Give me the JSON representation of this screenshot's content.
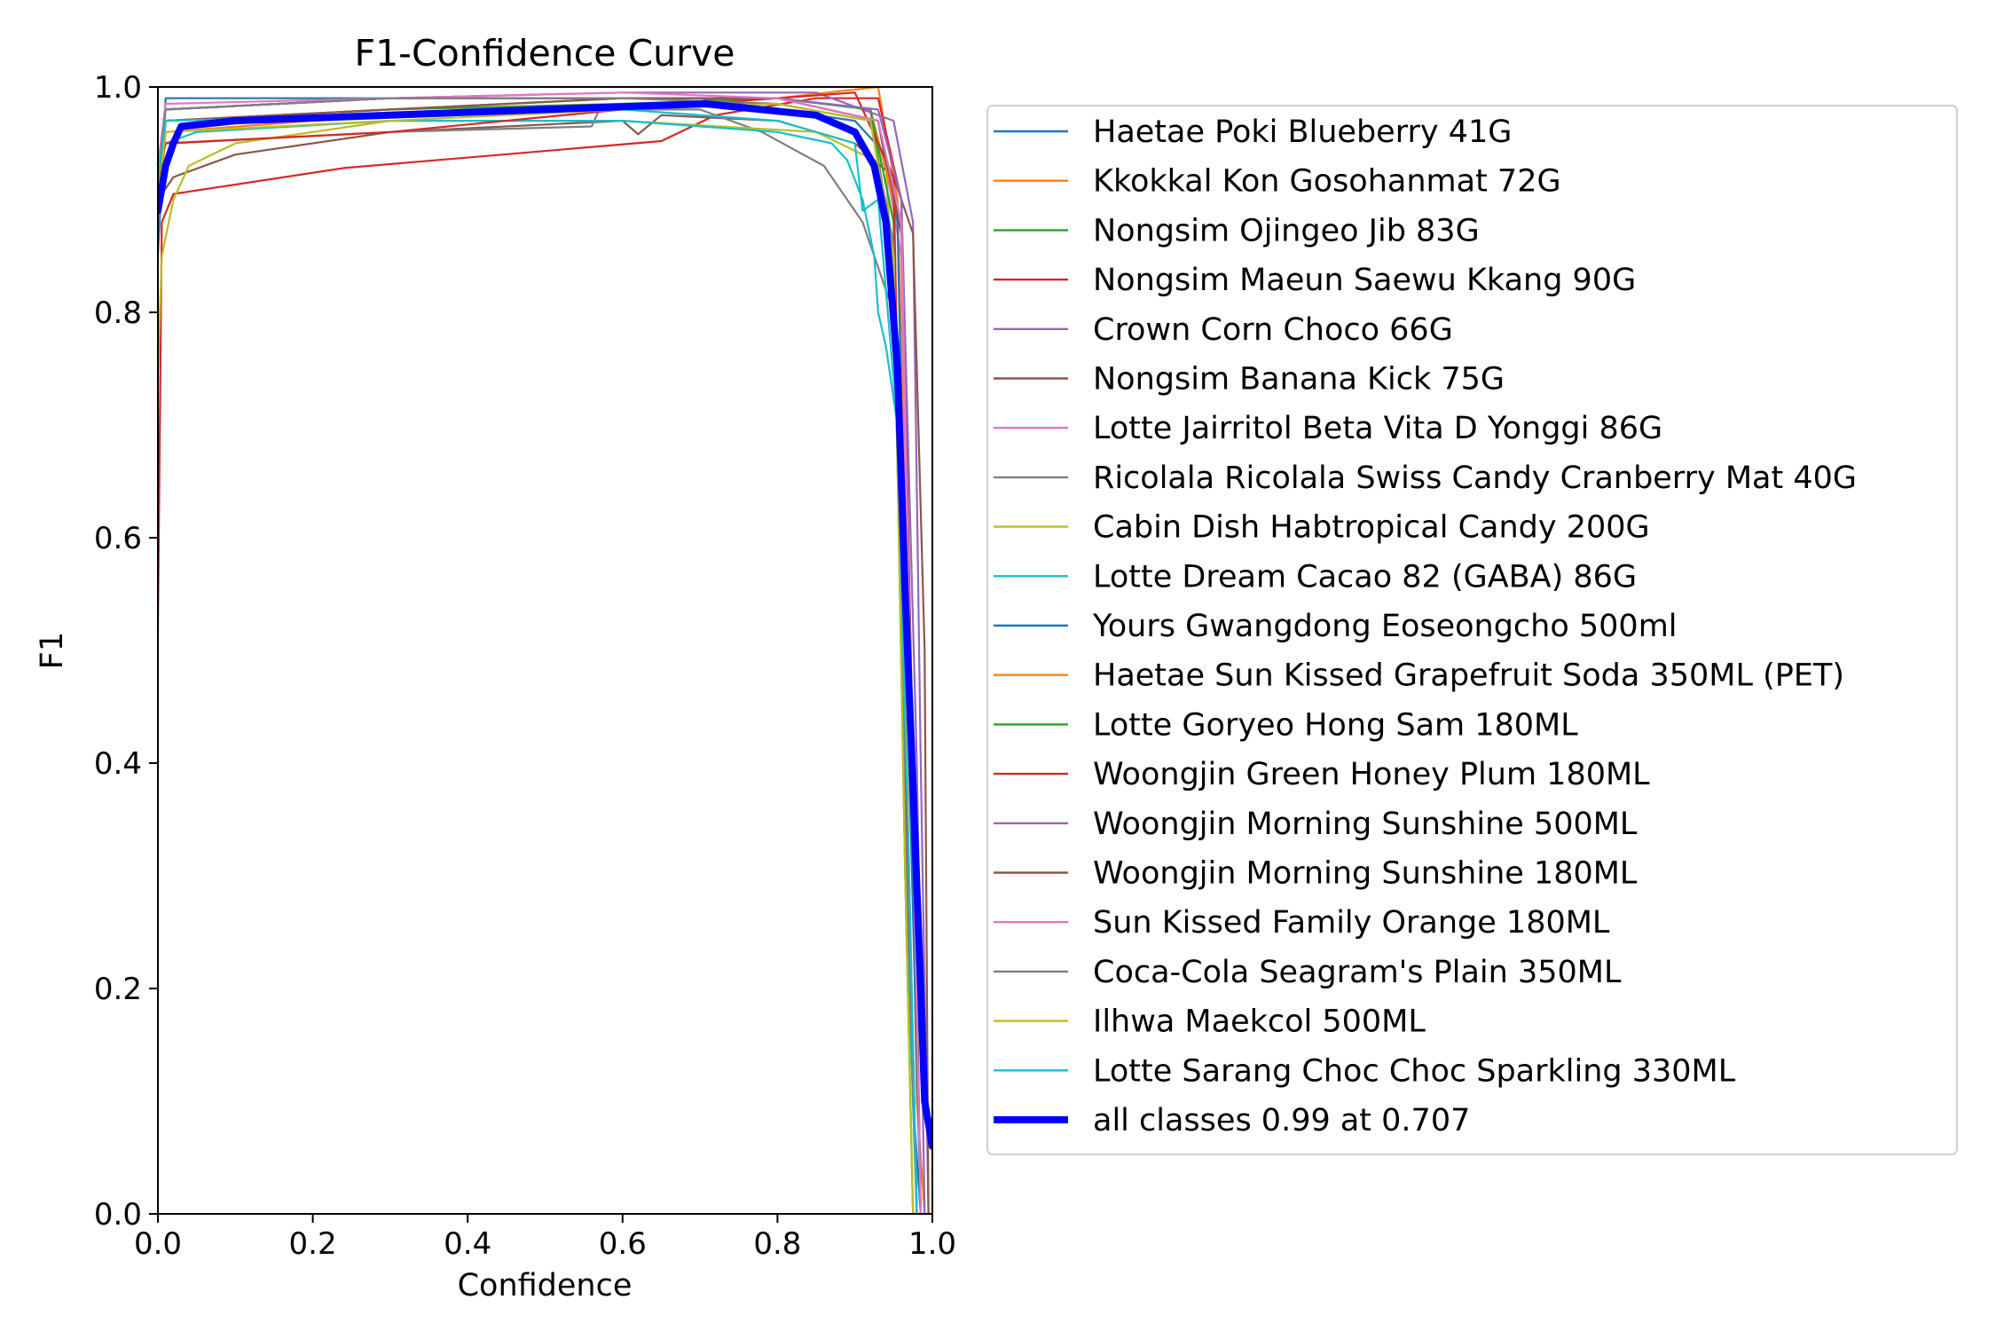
{
  "chart_data": {
    "type": "line",
    "title": "F1-Confidence Curve",
    "xlabel": "Confidence",
    "ylabel": "F1",
    "xlim": [
      0,
      1
    ],
    "ylim": [
      0,
      1
    ],
    "x_ticks": [
      "0.0",
      "0.2",
      "0.4",
      "0.6",
      "0.8",
      "1.0"
    ],
    "y_ticks": [
      "0.0",
      "0.2",
      "0.4",
      "0.6",
      "0.8",
      "1.0"
    ],
    "grid": false,
    "legend_position": "outside-right",
    "series": [
      {
        "name": "Haetae Poki Blueberry 41G",
        "color": "#1f77b4",
        "x": [
          0,
          0.01,
          0.1,
          0.3,
          0.5,
          0.7,
          0.9,
          0.94,
          0.96,
          0.975,
          0.985
        ],
        "y": [
          0.85,
          0.99,
          0.99,
          0.99,
          0.99,
          0.99,
          0.97,
          0.94,
          0.6,
          0.1,
          0.0
        ]
      },
      {
        "name": "Kkokkal Kon Gosohanmat 72G",
        "color": "#ff7f0e",
        "x": [
          0,
          0.01,
          0.2,
          0.5,
          0.8,
          0.93,
          0.955,
          0.97,
          0.98,
          0.99
        ],
        "y": [
          0.88,
          0.96,
          0.97,
          0.98,
          0.99,
          1.0,
          0.9,
          0.5,
          0.1,
          0.0
        ]
      },
      {
        "name": "Nongsim Ojingeo Jib 83G",
        "color": "#2ca02c",
        "x": [
          0,
          0.01,
          0.3,
          0.6,
          0.8,
          0.92,
          0.95,
          0.965,
          0.975
        ],
        "y": [
          0.9,
          0.97,
          0.98,
          0.99,
          0.99,
          0.98,
          0.85,
          0.3,
          0.0
        ]
      },
      {
        "name": "Nongsim Maeun Saewu Kkang 90G",
        "color": "#d62728",
        "x": [
          0,
          0.005,
          0.02,
          0.24,
          0.65,
          0.72,
          0.85,
          0.93,
          0.96,
          0.975,
          0.985
        ],
        "y": [
          0.52,
          0.88,
          0.905,
          0.928,
          0.952,
          0.975,
          0.99,
          0.99,
          0.9,
          0.4,
          0.0
        ]
      },
      {
        "name": "Crown Corn Choco 66G",
        "color": "#9467bd",
        "x": [
          0,
          0.01,
          0.3,
          0.6,
          0.85,
          0.95,
          0.975,
          0.985,
          0.995
        ],
        "y": [
          0.92,
          0.98,
          0.99,
          0.995,
          0.995,
          0.97,
          0.88,
          0.4,
          0.0
        ]
      },
      {
        "name": "Nongsim Banana Kick 75G",
        "color": "#8c564b",
        "x": [
          0,
          0.02,
          0.1,
          0.3,
          0.6,
          0.62,
          0.65,
          0.8,
          0.9,
          0.95,
          0.975,
          0.99,
          0.995
        ],
        "y": [
          0.9,
          0.92,
          0.94,
          0.96,
          0.97,
          0.958,
          0.975,
          0.97,
          0.95,
          0.92,
          0.87,
          0.5,
          0.0
        ]
      },
      {
        "name": "Lotte Jairritol Beta Vita D Yonggi 86G",
        "color": "#e377c2",
        "x": [
          0,
          0.01,
          0.3,
          0.6,
          0.8,
          0.93,
          0.96,
          0.975,
          0.985
        ],
        "y": [
          0.93,
          0.98,
          0.99,
          0.99,
          0.99,
          0.97,
          0.85,
          0.3,
          0.0
        ]
      },
      {
        "name": "Ricolala Ricolala Swiss Candy Cranberry Mat 40G",
        "color": "#7f7f7f",
        "x": [
          0,
          0.02,
          0.3,
          0.56,
          0.57,
          0.7,
          0.78,
          0.86,
          0.91,
          0.95,
          0.97,
          0.98
        ],
        "y": [
          0.9,
          0.95,
          0.96,
          0.965,
          0.98,
          0.98,
          0.96,
          0.93,
          0.88,
          0.8,
          0.3,
          0.0
        ]
      },
      {
        "name": "Cabin Dish Habtropical Candy 200G",
        "color": "#bcbd22",
        "x": [
          0,
          0.005,
          0.02,
          0.04,
          0.1,
          0.3,
          0.6,
          0.85,
          0.94,
          0.96,
          0.97,
          0.975,
          0.98
        ],
        "y": [
          0.75,
          0.85,
          0.9,
          0.93,
          0.95,
          0.97,
          0.97,
          0.96,
          0.93,
          0.7,
          0.3,
          0.1,
          0.0
        ]
      },
      {
        "name": "Lotte Dream Cacao 82 (GABA) 86G",
        "color": "#17becf",
        "x": [
          0,
          0.01,
          0.05,
          0.3,
          0.6,
          0.8,
          0.87,
          0.89,
          0.91,
          0.925,
          0.93,
          0.94,
          0.955,
          0.965,
          0.98
        ],
        "y": [
          0.93,
          0.95,
          0.96,
          0.97,
          0.97,
          0.96,
          0.95,
          0.935,
          0.9,
          0.85,
          0.8,
          0.77,
          0.7,
          0.3,
          0.0
        ]
      },
      {
        "name": "Yours Gwangdong Eoseongcho 500ml",
        "color": "#1f77b4",
        "x": [
          0,
          0.01,
          0.3,
          0.6,
          0.8,
          0.93,
          0.955,
          0.97,
          0.985
        ],
        "y": [
          0.92,
          0.98,
          0.99,
          0.99,
          0.99,
          0.97,
          0.88,
          0.4,
          0.0
        ]
      },
      {
        "name": "Haetae Sun Kissed Grapefruit Soda 350ML (PET)",
        "color": "#ff7f0e",
        "x": [
          0,
          0.01,
          0.3,
          0.6,
          0.8,
          0.92,
          0.95,
          0.965,
          0.98
        ],
        "y": [
          0.9,
          0.97,
          0.98,
          0.99,
          0.99,
          0.98,
          0.9,
          0.4,
          0.0
        ]
      },
      {
        "name": "Lotte Goryeo Hong Sam 180ML",
        "color": "#2ca02c",
        "x": [
          0,
          0.01,
          0.3,
          0.6,
          0.8,
          0.92,
          0.95,
          0.965,
          0.98
        ],
        "y": [
          0.91,
          0.97,
          0.98,
          0.985,
          0.99,
          0.98,
          0.88,
          0.35,
          0.0
        ]
      },
      {
        "name": "Woongjin Green Honey Plum 180ML",
        "color": "#d62728",
        "x": [
          0,
          0.01,
          0.3,
          0.6,
          0.8,
          0.9,
          0.95,
          0.965,
          0.98
        ],
        "y": [
          0.92,
          0.95,
          0.96,
          0.98,
          0.99,
          0.995,
          0.92,
          0.4,
          0.0
        ]
      },
      {
        "name": "Woongjin Morning Sunshine 500ML",
        "color": "#9467bd",
        "x": [
          0,
          0.01,
          0.3,
          0.6,
          0.8,
          0.93,
          0.96,
          0.98,
          0.99
        ],
        "y": [
          0.93,
          0.98,
          0.99,
          0.99,
          0.99,
          0.98,
          0.9,
          0.4,
          0.0
        ]
      },
      {
        "name": "Woongjin Morning Sunshine 180ML",
        "color": "#8c564b",
        "x": [
          0,
          0.01,
          0.3,
          0.6,
          0.8,
          0.93,
          0.96,
          0.975,
          0.985
        ],
        "y": [
          0.92,
          0.97,
          0.98,
          0.99,
          0.99,
          0.97,
          0.87,
          0.4,
          0.0
        ]
      },
      {
        "name": "Sun Kissed Family Orange 180ML",
        "color": "#e377c2",
        "x": [
          0,
          0.01,
          0.3,
          0.6,
          0.8,
          0.93,
          0.96,
          0.975,
          0.985
        ],
        "y": [
          0.93,
          0.985,
          0.99,
          0.995,
          0.99,
          0.97,
          0.88,
          0.35,
          0.0
        ]
      },
      {
        "name": "Coca-Cola Seagram's Plain 350ML",
        "color": "#7f7f7f",
        "x": [
          0,
          0.01,
          0.3,
          0.6,
          0.8,
          0.92,
          0.95,
          0.965,
          0.98
        ],
        "y": [
          0.92,
          0.98,
          0.99,
          0.99,
          0.985,
          0.97,
          0.86,
          0.35,
          0.0
        ]
      },
      {
        "name": "Ilhwa Maekcol 500ML",
        "color": "#bcbd22",
        "x": [
          0,
          0.01,
          0.3,
          0.6,
          0.8,
          0.92,
          0.95,
          0.965,
          0.975
        ],
        "y": [
          0.9,
          0.96,
          0.97,
          0.98,
          0.985,
          0.97,
          0.85,
          0.3,
          0.0
        ]
      },
      {
        "name": "Lotte Sarang Choc Choc Sparkling 330ML",
        "color": "#17becf",
        "x": [
          0,
          0.01,
          0.3,
          0.6,
          0.8,
          0.9,
          0.91,
          0.93,
          0.955,
          0.97,
          0.98
        ],
        "y": [
          0.92,
          0.97,
          0.975,
          0.98,
          0.97,
          0.95,
          0.89,
          0.9,
          0.7,
          0.3,
          0.0
        ]
      },
      {
        "name": "all classes 0.99 at 0.707",
        "color": "#0000ff",
        "bold": true,
        "x": [
          0,
          0.01,
          0.02,
          0.03,
          0.1,
          0.3,
          0.5,
          0.707,
          0.85,
          0.9,
          0.925,
          0.94,
          0.955,
          0.965,
          0.975,
          0.985,
          0.99,
          1.0
        ],
        "y": [
          0.89,
          0.93,
          0.95,
          0.965,
          0.97,
          0.975,
          0.98,
          0.985,
          0.975,
          0.96,
          0.93,
          0.88,
          0.75,
          0.55,
          0.38,
          0.2,
          0.1,
          0.06
        ]
      }
    ]
  }
}
